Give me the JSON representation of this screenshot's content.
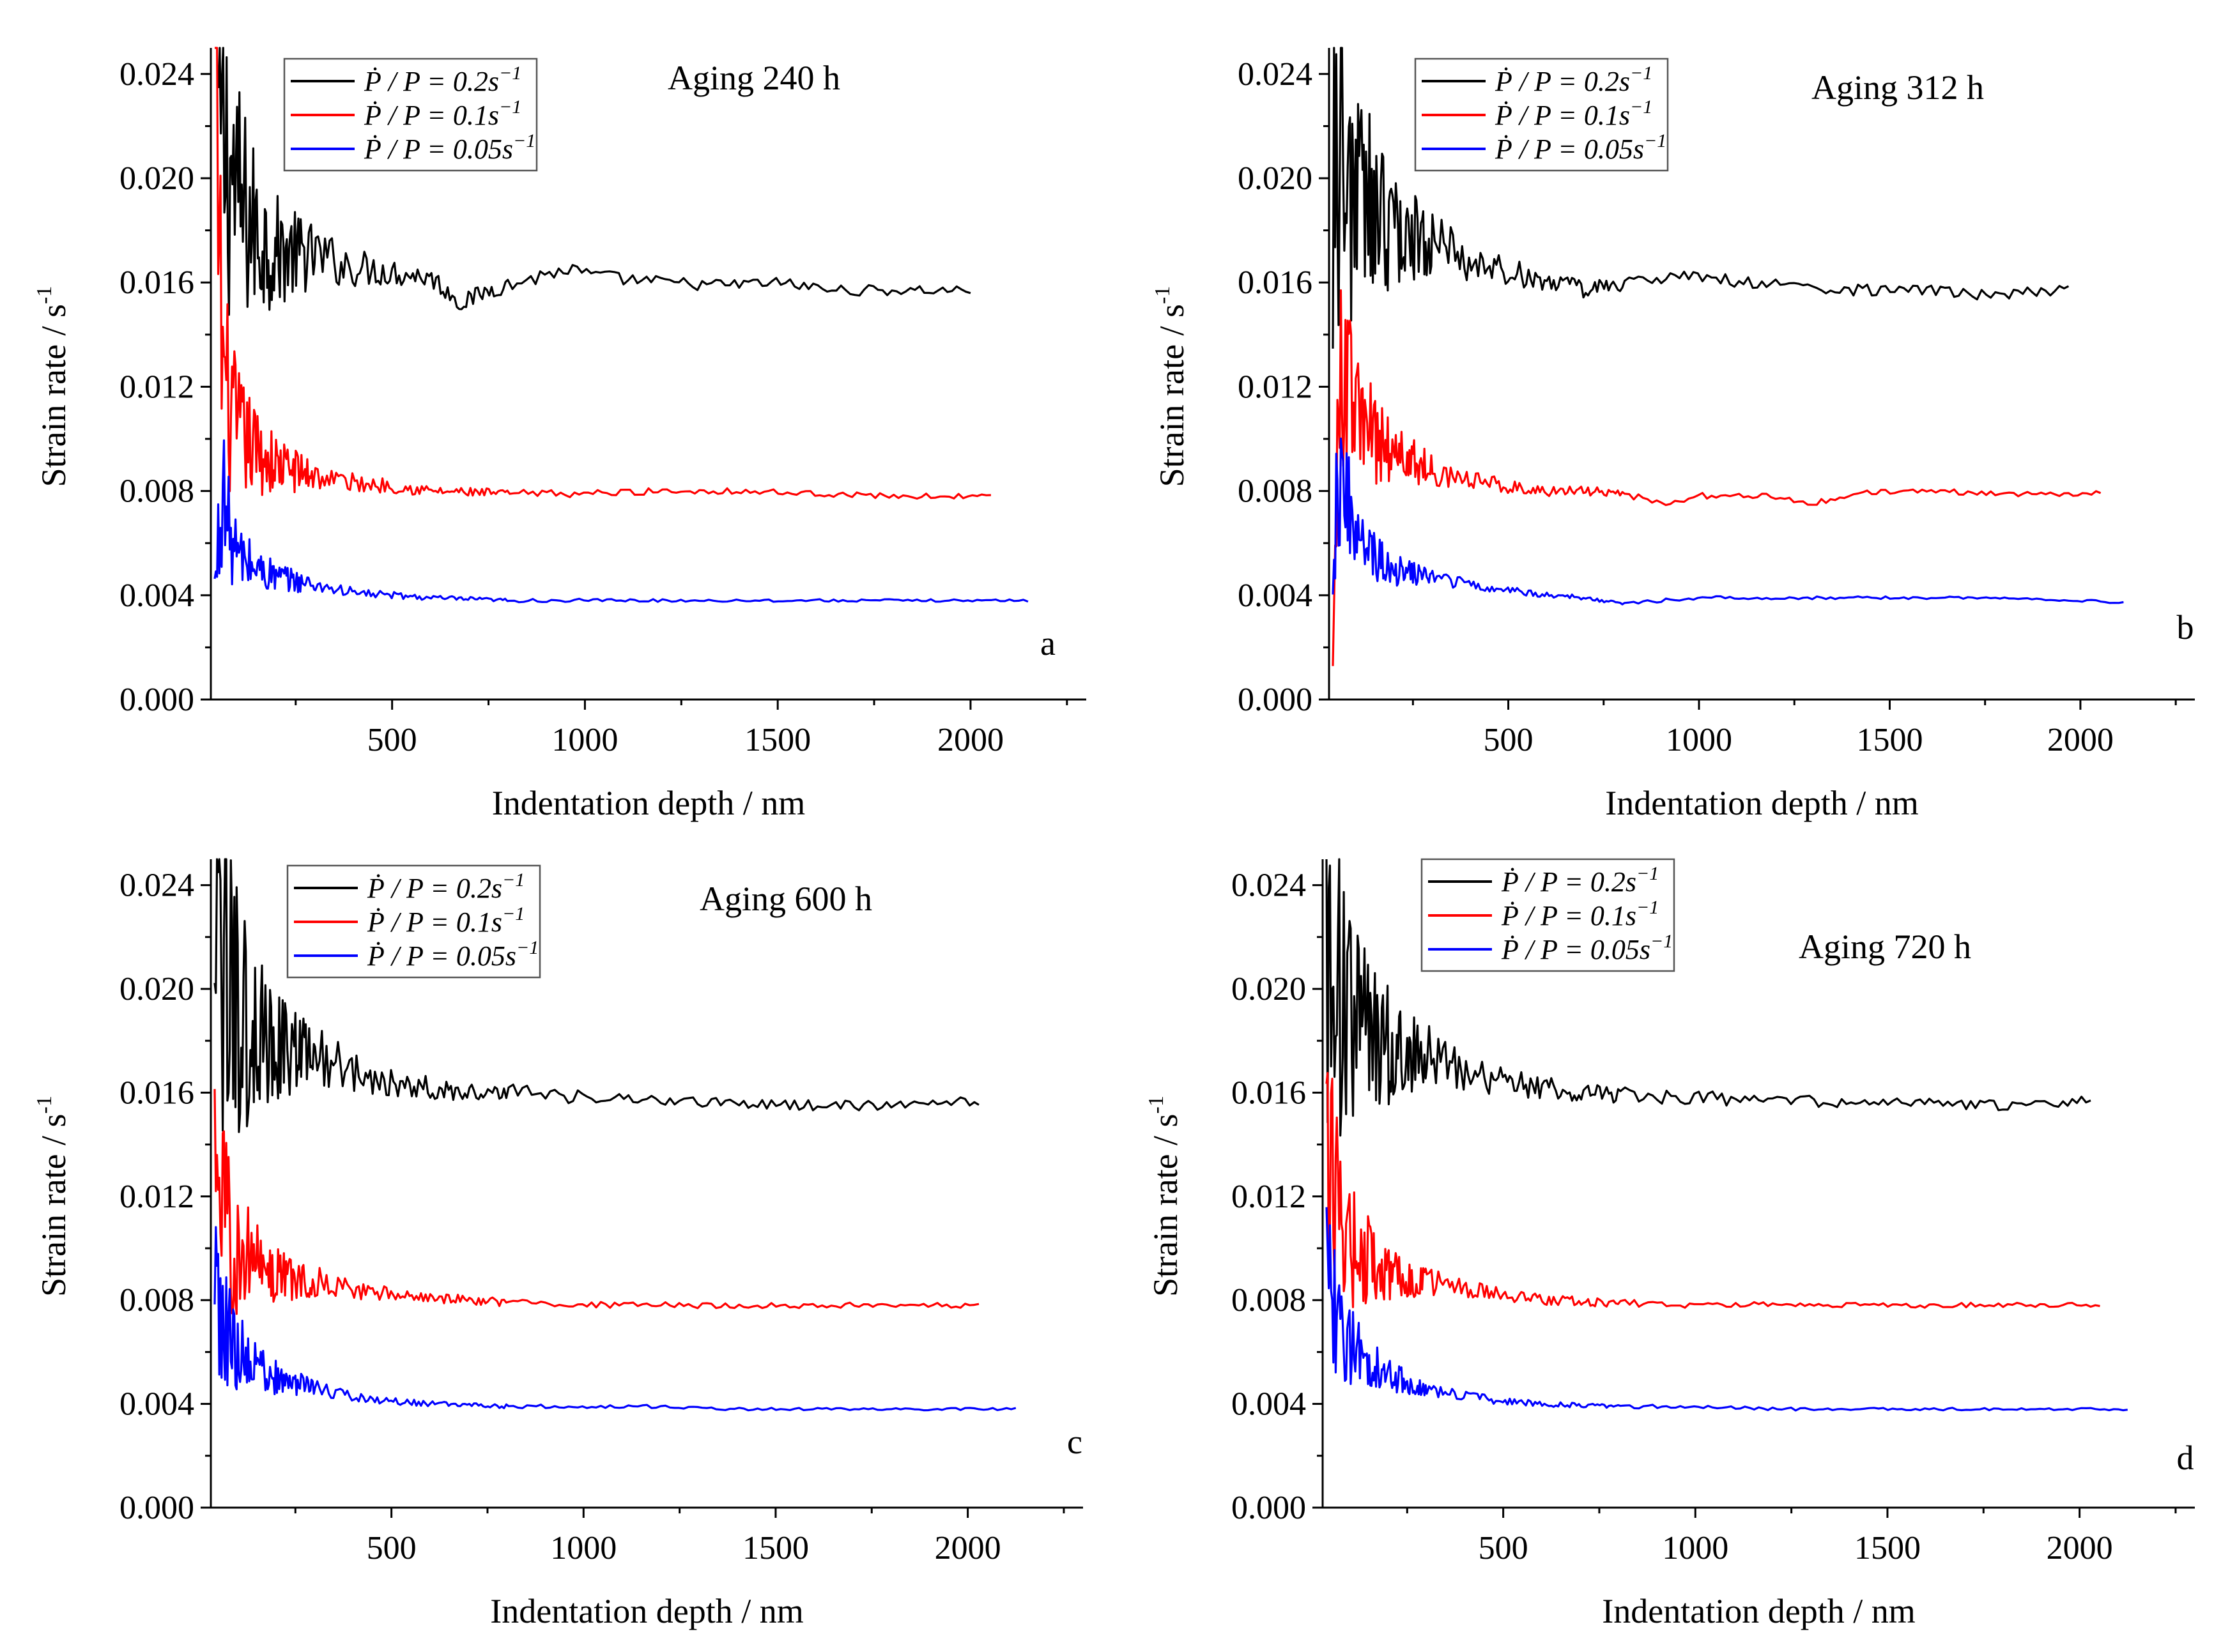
{
  "figure": {
    "xlabel": "Indentation depth / nm",
    "ylabel": "Strain rate / s",
    "ylabel_exponent": "-1"
  },
  "legend": [
    {
      "label_main": "Ṗ / P = 0.2s",
      "label_sup": "−1",
      "color": "#000000"
    },
    {
      "label_main": "Ṗ / P = 0.1s",
      "label_sup": "−1",
      "color": "#ff0000"
    },
    {
      "label_main": "Ṗ / P = 0.05s",
      "label_sup": "−1",
      "color": "#0000ff"
    }
  ],
  "chart_data": [
    {
      "type": "line",
      "panel_letter": "a",
      "title": "Aging 240 h",
      "xlabel": "Indentation depth / nm",
      "ylabel": "Strain rate / s^-1",
      "xlim": [
        30,
        2300
      ],
      "ylim": [
        0,
        0.025
      ],
      "xticks": [
        500,
        1000,
        1500,
        2000
      ],
      "yticks": [
        0.0,
        0.004,
        0.008,
        0.012,
        0.016,
        0.02,
        0.024
      ],
      "ytick_labels": [
        "0.000",
        "0.004",
        "0.008",
        "0.012",
        "0.016",
        "0.020",
        "0.024"
      ],
      "xtick_labels": [
        "500",
        "1000",
        "1500",
        "2000"
      ],
      "series": [
        {
          "name": "Ṗ/P = 0.2 s^-1",
          "color": "#000000",
          "x": [
            50,
            80,
            100,
            150,
            200,
            300,
            400,
            500,
            600,
            680,
            750,
            850,
            950,
            1050,
            1200,
            1350,
            1500,
            1650,
            1800,
            1950,
            2010
          ],
          "y": [
            0.0215,
            0.0205,
            0.019,
            0.0178,
            0.0172,
            0.017,
            0.0166,
            0.0164,
            0.0162,
            0.0152,
            0.0157,
            0.0161,
            0.0165,
            0.0162,
            0.016,
            0.0159,
            0.016,
            0.0157,
            0.0157,
            0.0157,
            0.0157
          ]
        },
        {
          "name": "Ṗ/P = 0.1 s^-1",
          "color": "#ff0000",
          "x": [
            40,
            60,
            80,
            100,
            150,
            200,
            300,
            400,
            500,
            600,
            800,
            1000,
            1200,
            1400,
            1600,
            1800,
            2000,
            2060
          ],
          "y": [
            0.025,
            0.013,
            0.011,
            0.0102,
            0.0095,
            0.009,
            0.0086,
            0.0083,
            0.0082,
            0.008,
            0.0079,
            0.0079,
            0.008,
            0.008,
            0.0079,
            0.0078,
            0.0078,
            0.0078
          ]
        },
        {
          "name": "Ṗ/P = 0.05 s^-1",
          "color": "#0000ff",
          "x": [
            40,
            60,
            80,
            100,
            150,
            200,
            300,
            400,
            500,
            600,
            800,
            1000,
            1200,
            1400,
            1600,
            1800,
            2000,
            2150
          ],
          "y": [
            0.004,
            0.0082,
            0.0062,
            0.0055,
            0.005,
            0.0047,
            0.0044,
            0.0041,
            0.004,
            0.0039,
            0.0038,
            0.0038,
            0.0038,
            0.0038,
            0.0038,
            0.0038,
            0.0038,
            0.0038
          ]
        }
      ]
    },
    {
      "type": "line",
      "panel_letter": "b",
      "title": "Aging 312 h",
      "xlabel": "Indentation depth / nm",
      "ylabel": "Strain rate / s^-1",
      "xlim": [
        30,
        2300
      ],
      "ylim": [
        0,
        0.025
      ],
      "xticks": [
        500,
        1000,
        1500,
        2000
      ],
      "yticks": [
        0.0,
        0.004,
        0.008,
        0.012,
        0.016,
        0.02,
        0.024
      ],
      "ytick_labels": [
        "0.000",
        "0.004",
        "0.008",
        "0.012",
        "0.016",
        "0.020",
        "0.024"
      ],
      "xtick_labels": [
        "500",
        "1000",
        "1500",
        "2000"
      ],
      "series": [
        {
          "name": "Ṗ/P = 0.2 s^-1",
          "color": "#000000",
          "x": [
            40,
            70,
            100,
            150,
            200,
            300,
            400,
            500,
            600,
            700,
            800,
            900,
            1000,
            1200,
            1400,
            1600,
            1750,
            1850,
            1980
          ],
          "y": [
            0.022,
            0.0205,
            0.0195,
            0.0185,
            0.018,
            0.0175,
            0.0168,
            0.0164,
            0.0161,
            0.0157,
            0.016,
            0.0161,
            0.0162,
            0.0159,
            0.0157,
            0.0157,
            0.0155,
            0.0156,
            0.0157
          ]
        },
        {
          "name": "Ṗ/P = 0.1 s^-1",
          "color": "#ff0000",
          "x": [
            40,
            60,
            100,
            150,
            200,
            300,
            400,
            500,
            600,
            700,
            800,
            900,
            1000,
            1200,
            1300,
            1400,
            1600,
            1800,
            2000,
            2060
          ],
          "y": [
            0.002,
            0.013,
            0.011,
            0.01,
            0.0095,
            0.0088,
            0.0084,
            0.0082,
            0.008,
            0.008,
            0.0079,
            0.0075,
            0.0078,
            0.0078,
            0.0075,
            0.0079,
            0.008,
            0.0079,
            0.0079,
            0.0079
          ]
        },
        {
          "name": "Ṗ/P = 0.05 s^-1",
          "color": "#0000ff",
          "x": [
            40,
            60,
            100,
            150,
            200,
            300,
            400,
            500,
            600,
            700,
            800,
            1000,
            1200,
            1400,
            1600,
            1800,
            2000,
            2120
          ],
          "y": [
            0.006,
            0.009,
            0.006,
            0.0055,
            0.005,
            0.0047,
            0.0044,
            0.0042,
            0.004,
            0.0039,
            0.0037,
            0.0039,
            0.0039,
            0.0039,
            0.0039,
            0.0039,
            0.0038,
            0.0037
          ]
        }
      ]
    },
    {
      "type": "line",
      "panel_letter": "c",
      "title": "Aging 600 h",
      "xlabel": "Indentation depth / nm",
      "ylabel": "Strain rate / s^-1",
      "xlim": [
        30,
        2300
      ],
      "ylim": [
        0,
        0.025
      ],
      "xticks": [
        500,
        1000,
        1500,
        2000
      ],
      "yticks": [
        0.0,
        0.004,
        0.008,
        0.012,
        0.016,
        0.02,
        0.024
      ],
      "ytick_labels": [
        "0.000",
        "0.004",
        "0.008",
        "0.012",
        "0.016",
        "0.020",
        "0.024"
      ],
      "xtick_labels": [
        "500",
        "1000",
        "1500",
        "2000"
      ],
      "series": [
        {
          "name": "Ṗ/P = 0.2 s^-1",
          "color": "#000000",
          "x": [
            40,
            60,
            100,
            150,
            200,
            300,
            400,
            500,
            600,
            700,
            800,
            900,
            1000,
            1200,
            1400,
            1600,
            1800,
            2030
          ],
          "y": [
            0.022,
            0.02,
            0.019,
            0.0182,
            0.0178,
            0.0175,
            0.0168,
            0.0164,
            0.0162,
            0.016,
            0.0161,
            0.0159,
            0.0158,
            0.0157,
            0.0156,
            0.0155,
            0.0155,
            0.0157
          ]
        },
        {
          "name": "Ṗ/P = 0.1 s^-1",
          "color": "#ff0000",
          "x": [
            40,
            60,
            100,
            150,
            200,
            300,
            400,
            500,
            600,
            800,
            1000,
            1200,
            1400,
            1600,
            1800,
            2040
          ],
          "y": [
            0.017,
            0.011,
            0.01,
            0.0095,
            0.009,
            0.0087,
            0.0084,
            0.0082,
            0.0081,
            0.0079,
            0.0078,
            0.0078,
            0.0078,
            0.0078,
            0.0078,
            0.0078
          ]
        },
        {
          "name": "Ṗ/P = 0.05 s^-1",
          "color": "#0000ff",
          "x": [
            40,
            60,
            100,
            150,
            200,
            300,
            400,
            500,
            600,
            800,
            1000,
            1200,
            1400,
            1600,
            1800,
            2000,
            2130
          ],
          "y": [
            0.008,
            0.007,
            0.006,
            0.0055,
            0.005,
            0.0046,
            0.0043,
            0.0041,
            0.004,
            0.0039,
            0.0039,
            0.0039,
            0.0038,
            0.0038,
            0.0038,
            0.0038,
            0.0038
          ]
        }
      ]
    },
    {
      "type": "line",
      "panel_letter": "d",
      "title": "Aging 720 h",
      "xlabel": "Indentation depth / nm",
      "ylabel": "Strain rate / s^-1",
      "xlim": [
        30,
        2300
      ],
      "ylim": [
        0,
        0.025
      ],
      "xticks": [
        500,
        1000,
        1500,
        2000
      ],
      "yticks": [
        0.0,
        0.004,
        0.008,
        0.012,
        0.016,
        0.02,
        0.024
      ],
      "ytick_labels": [
        "0.000",
        "0.004",
        "0.008",
        "0.012",
        "0.016",
        "0.020",
        "0.024"
      ],
      "xtick_labels": [
        "500",
        "1000",
        "1500",
        "2000"
      ],
      "series": [
        {
          "name": "Ṗ/P = 0.2 s^-1",
          "color": "#000000",
          "x": [
            40,
            60,
            100,
            150,
            200,
            300,
            400,
            500,
            600,
            700,
            800,
            1000,
            1200,
            1400,
            1600,
            1800,
            1900,
            2040
          ],
          "y": [
            0.022,
            0.02,
            0.019,
            0.0182,
            0.0178,
            0.0175,
            0.0168,
            0.0164,
            0.0162,
            0.016,
            0.0159,
            0.0158,
            0.0157,
            0.0156,
            0.0156,
            0.0155,
            0.0155,
            0.0157
          ]
        },
        {
          "name": "Ṗ/P = 0.1 s^-1",
          "color": "#ff0000",
          "x": [
            40,
            60,
            100,
            150,
            200,
            300,
            400,
            500,
            600,
            800,
            1000,
            1200,
            1400,
            1600,
            1800,
            2000,
            2060
          ],
          "y": [
            0.013,
            0.012,
            0.01,
            0.0095,
            0.009,
            0.0087,
            0.0084,
            0.0082,
            0.008,
            0.0079,
            0.0078,
            0.0078,
            0.0078,
            0.0078,
            0.0078,
            0.0078,
            0.0078
          ]
        },
        {
          "name": "Ṗ/P = 0.05 s^-1",
          "color": "#0000ff",
          "x": [
            40,
            60,
            100,
            150,
            200,
            300,
            400,
            500,
            600,
            800,
            1000,
            1200,
            1400,
            1600,
            1800,
            2000,
            2130
          ],
          "y": [
            0.009,
            0.0075,
            0.0062,
            0.0056,
            0.0051,
            0.0046,
            0.0043,
            0.0041,
            0.004,
            0.0039,
            0.0039,
            0.0038,
            0.0038,
            0.0038,
            0.0038,
            0.0038,
            0.0038
          ]
        }
      ]
    }
  ]
}
